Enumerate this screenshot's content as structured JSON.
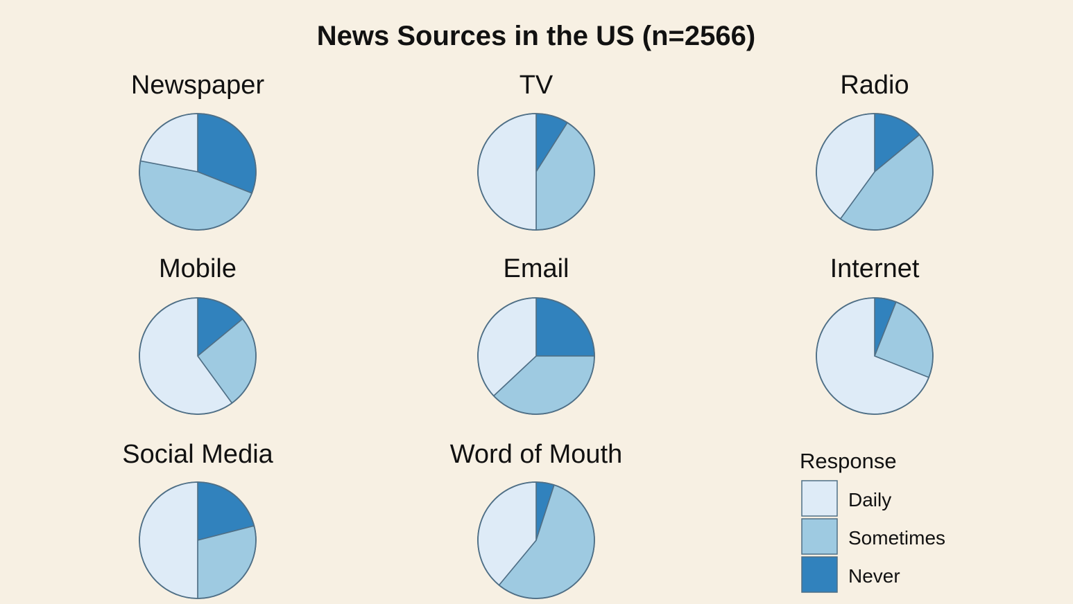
{
  "chart_data": {
    "type": "pie",
    "title": "News Sources in the US (n=2566)",
    "legend": {
      "title": "Response",
      "position": "bottom-right",
      "entries": [
        "Daily",
        "Sometimes",
        "Never"
      ]
    },
    "colors": {
      "Daily": "#deebf7",
      "Sometimes": "#9ecae1",
      "Never": "#3182bd"
    },
    "categories": [
      "Never",
      "Sometimes",
      "Daily"
    ],
    "pies": [
      {
        "name": "Newspaper",
        "values": {
          "Never": 31,
          "Sometimes": 47,
          "Daily": 22
        }
      },
      {
        "name": "TV",
        "values": {
          "Never": 9,
          "Sometimes": 41,
          "Daily": 50
        }
      },
      {
        "name": "Radio",
        "values": {
          "Never": 14,
          "Sometimes": 46,
          "Daily": 40
        }
      },
      {
        "name": "Mobile",
        "values": {
          "Never": 14,
          "Sometimes": 26,
          "Daily": 60
        }
      },
      {
        "name": "Email",
        "values": {
          "Never": 25,
          "Sometimes": 38,
          "Daily": 37
        }
      },
      {
        "name": "Internet",
        "values": {
          "Never": 6,
          "Sometimes": 25,
          "Daily": 69
        }
      },
      {
        "name": "Social Media",
        "values": {
          "Never": 21,
          "Sometimes": 29,
          "Daily": 50
        }
      },
      {
        "name": "Word of Mouth",
        "values": {
          "Never": 5,
          "Sometimes": 56,
          "Daily": 39
        }
      }
    ]
  }
}
